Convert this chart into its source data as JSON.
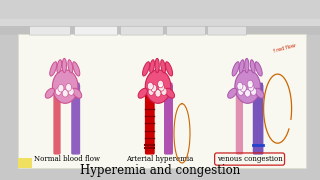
{
  "bg_color": "#c8c8c8",
  "content_bg": "#f0f0e8",
  "page_bg": "#f8f8f0",
  "title": "Hyperemia and congestion",
  "title_fontsize": 8.5,
  "label1": "Normal blood flow",
  "label2": "Arterial hyperemia",
  "label3": "venous congestion",
  "label_fontsize": 5.0,
  "circle_color": "#cc2222",
  "diagram_centers": [
    0.21,
    0.5,
    0.78
  ],
  "normal": {
    "artery": "#e06070",
    "vein": "#9060c0",
    "cap_fill": "#e080b0",
    "cap_outline": "#cc5090",
    "cap_inner": "#f0a0c8"
  },
  "arterial": {
    "artery": "#cc0000",
    "vein": "#b050b0",
    "cap_fill": "#ee5588",
    "cap_outline": "#cc2255",
    "cap_inner": "#ff9999"
  },
  "venous": {
    "artery": "#e090b0",
    "vein": "#7755bb",
    "cap_fill": "#cc88cc",
    "cap_outline": "#aa55aa",
    "cap_inner": "#ddaadd"
  }
}
